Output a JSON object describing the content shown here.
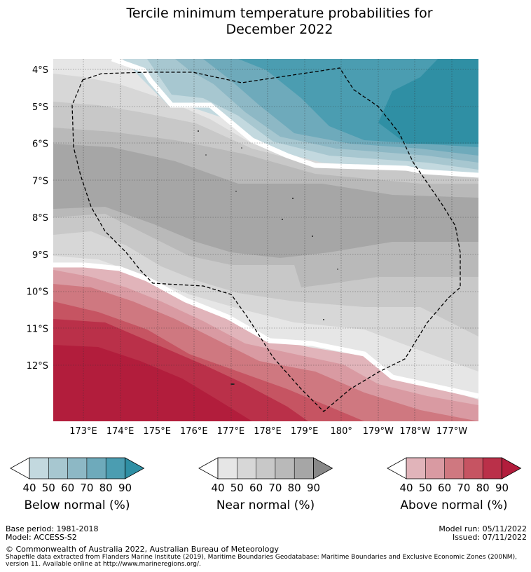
{
  "title_line1": "Tercile minimum temperature probabilities for",
  "title_line2": "December 2022",
  "map": {
    "lat_labels": [
      "4°S",
      "5°S",
      "6°S",
      "7°S",
      "8°S",
      "9°S",
      "10°S",
      "11°S",
      "12°S"
    ],
    "lon_labels": [
      "173°E",
      "174°E",
      "175°E",
      "176°E",
      "177°E",
      "178°E",
      "179°E",
      "180°",
      "179°W",
      "178°W",
      "177°W"
    ],
    "boundary": "Exclusive economic zone (dashed line)"
  },
  "legends": [
    {
      "label": "Below normal (%)",
      "ticks": [
        "40",
        "50",
        "60",
        "70",
        "80",
        "90"
      ],
      "colors": [
        "#c3d9df",
        "#a7c7d0",
        "#8db8c5",
        "#6eaabb",
        "#4b9db1",
        "#2f8fa4"
      ]
    },
    {
      "label": "Near normal (%)",
      "ticks": [
        "40",
        "50",
        "60",
        "70",
        "80",
        "90"
      ],
      "colors": [
        "#e6e6e6",
        "#d7d7d7",
        "#c8c8c8",
        "#b9b9b9",
        "#a6a6a6",
        "#888888"
      ]
    },
    {
      "label": "Above normal (%)",
      "ticks": [
        "40",
        "50",
        "60",
        "70",
        "80",
        "90"
      ],
      "colors": [
        "#e1b4ba",
        "#d99aa2",
        "#cf7880",
        "#c65462",
        "#ba3049",
        "#b21d3c"
      ]
    }
  ],
  "footer": {
    "base_period": "Base period: 1981-2018",
    "model": "Model: ACCESS-S2",
    "model_run": "Model run: 05/11/2022",
    "issued": "Issued: 07/11/2022",
    "copyright": "© Commonwealth of Australia 2022, Australian Bureau of Meteorology",
    "shapefile_line1": "Shapefile data extracted from Flanders Marine Institute (2019), Maritime Boundaries Geodatabase: Maritime Boundaries and Exclusive Economic Zones (200NM),",
    "shapefile_line2": "version 11. Available online at http://www.marineregions.org/."
  }
}
